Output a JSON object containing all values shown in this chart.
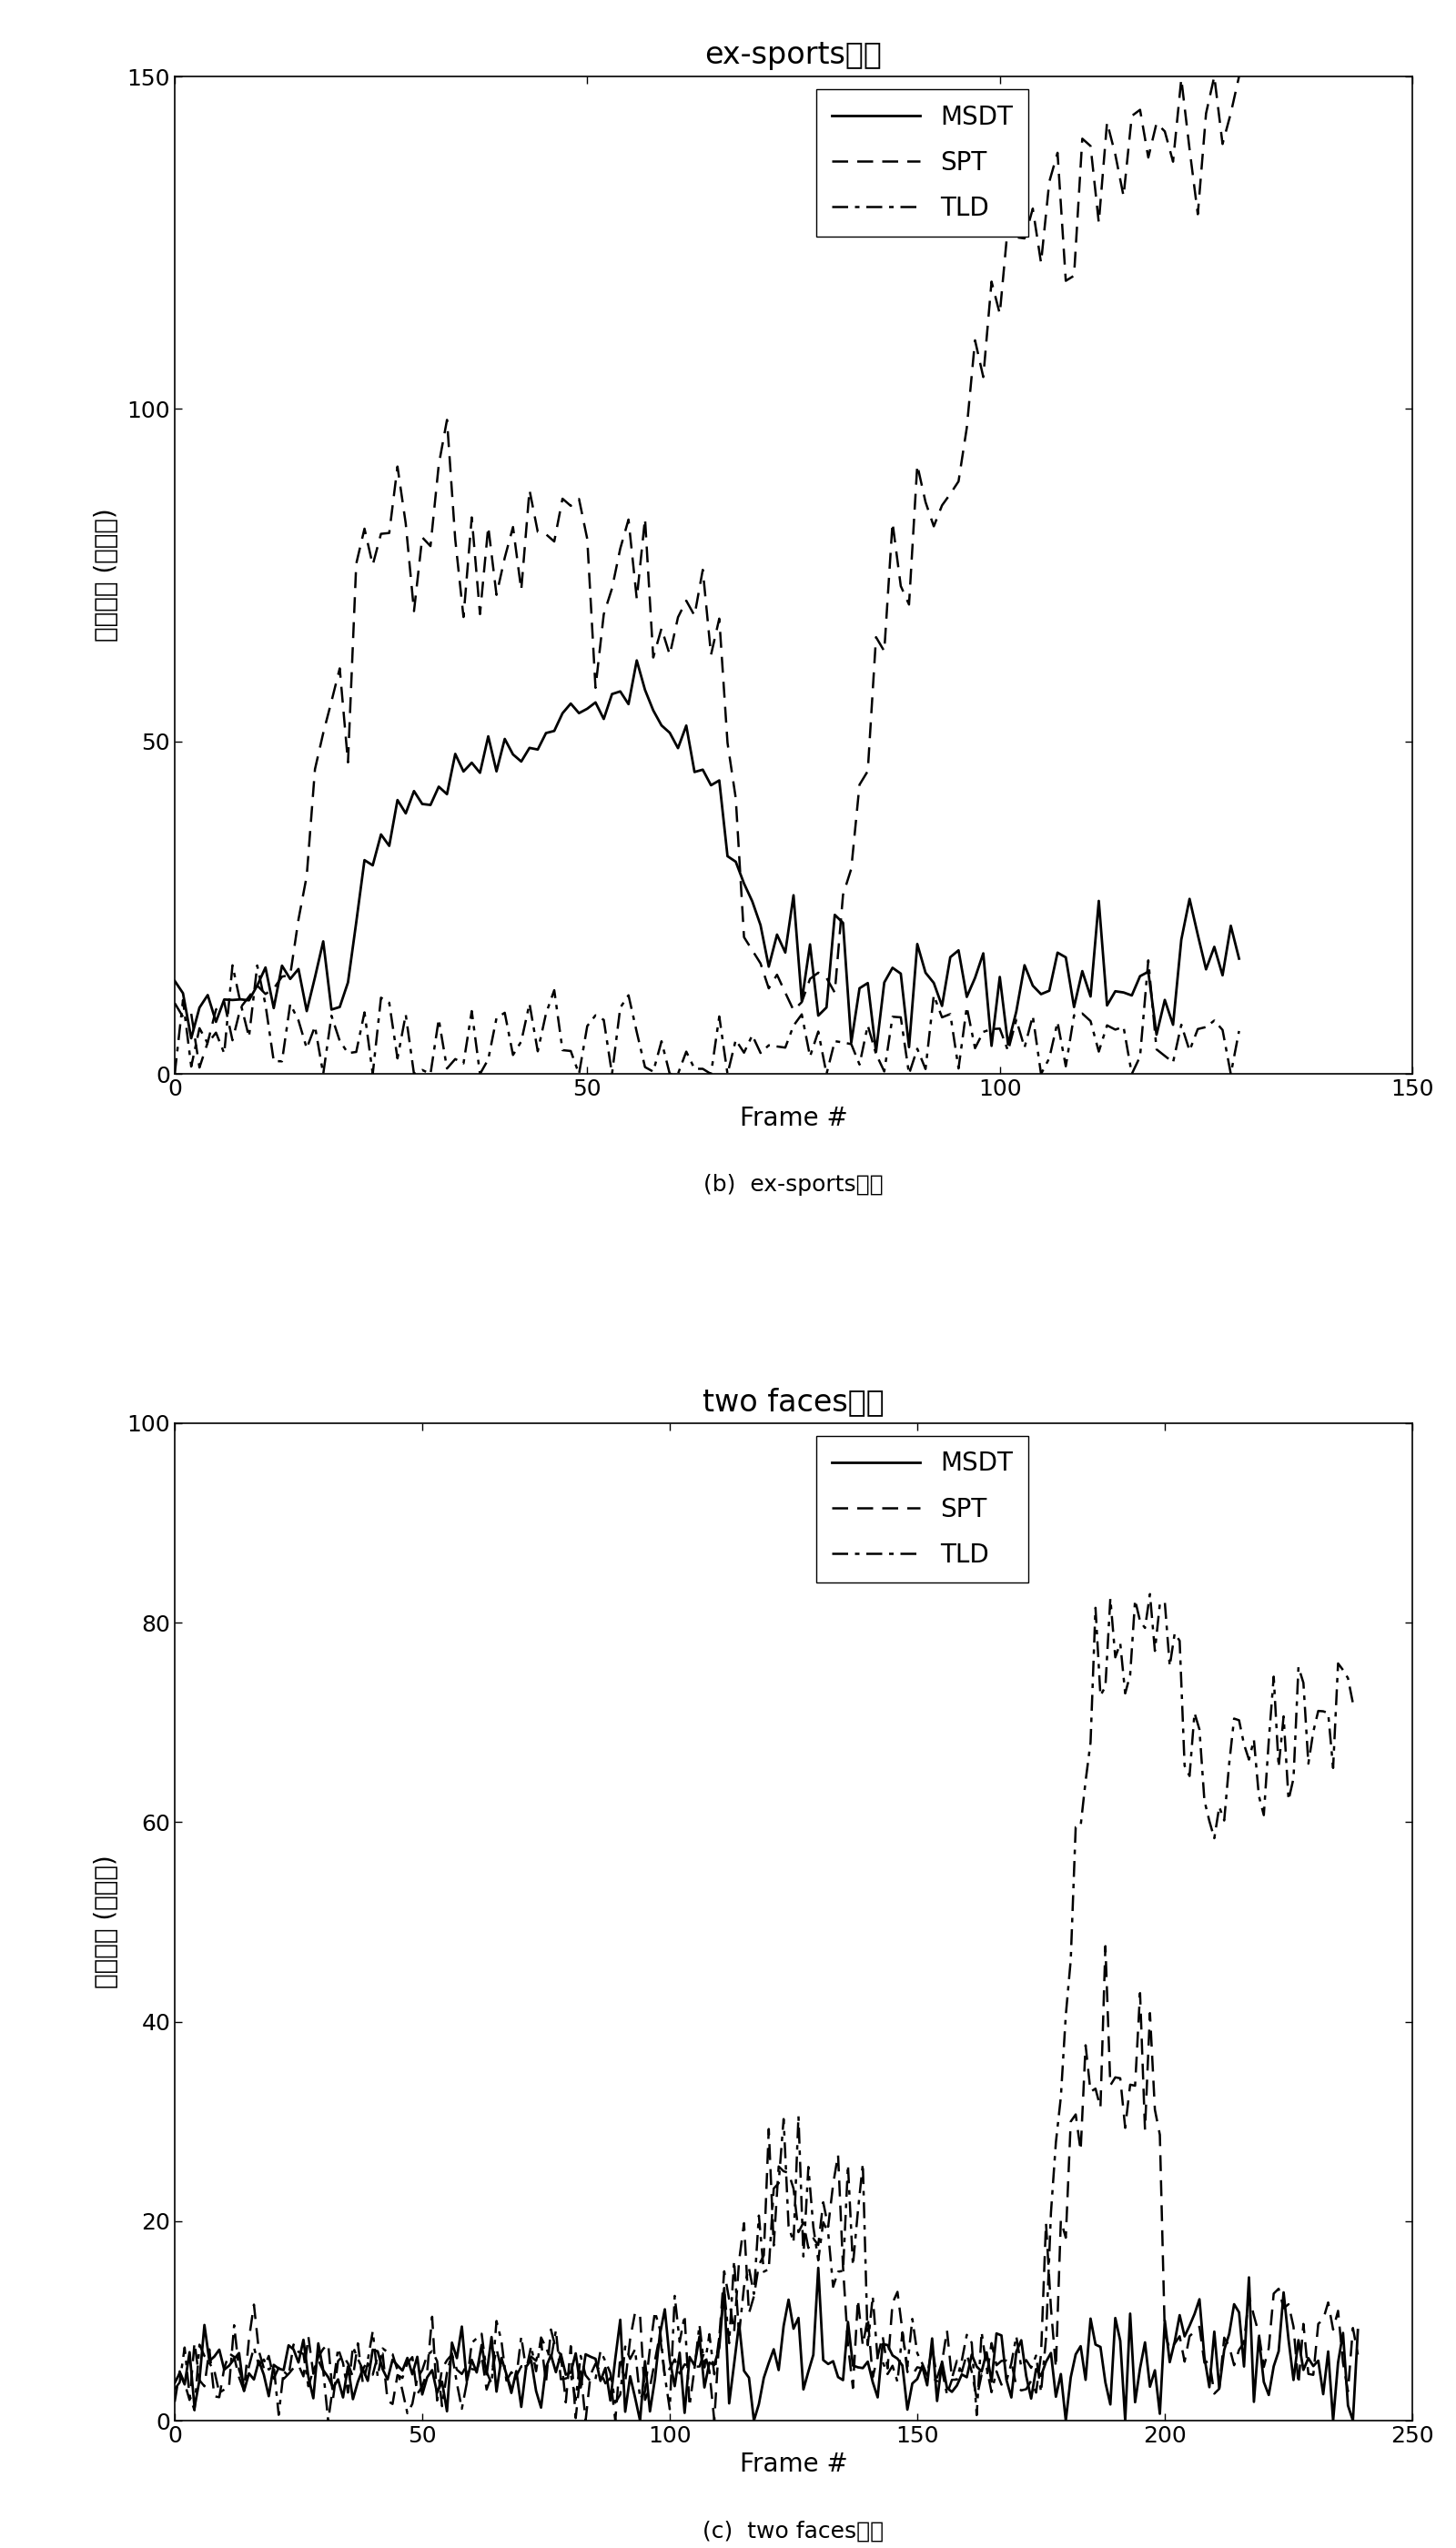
{
  "chart1": {
    "title": "ex-sports序列",
    "xlabel": "Frame #",
    "ylabel": "跟踪误差 (像素点)",
    "xlim": [
      0,
      150
    ],
    "ylim": [
      0,
      150
    ],
    "xticks": [
      0,
      50,
      100,
      150
    ],
    "yticks": [
      0,
      50,
      100,
      150
    ],
    "caption": "(b)  ex-sports序列"
  },
  "chart2": {
    "title": "two faces序列",
    "xlabel": "Frame #",
    "ylabel": "跟踪误差 (像素点)",
    "xlim": [
      0,
      250
    ],
    "ylim": [
      0,
      100
    ],
    "xticks": [
      0,
      50,
      100,
      150,
      200,
      250
    ],
    "yticks": [
      0,
      20,
      40,
      60,
      80,
      100
    ],
    "caption": "(c)  two faces序列"
  },
  "legend_labels": [
    "MSDT",
    "SPT",
    "TLD"
  ],
  "line_color": "#000000",
  "background_color": "#ffffff",
  "title_fontsize": 24,
  "label_fontsize": 20,
  "tick_fontsize": 18,
  "legend_fontsize": 20,
  "caption_fontsize": 18
}
